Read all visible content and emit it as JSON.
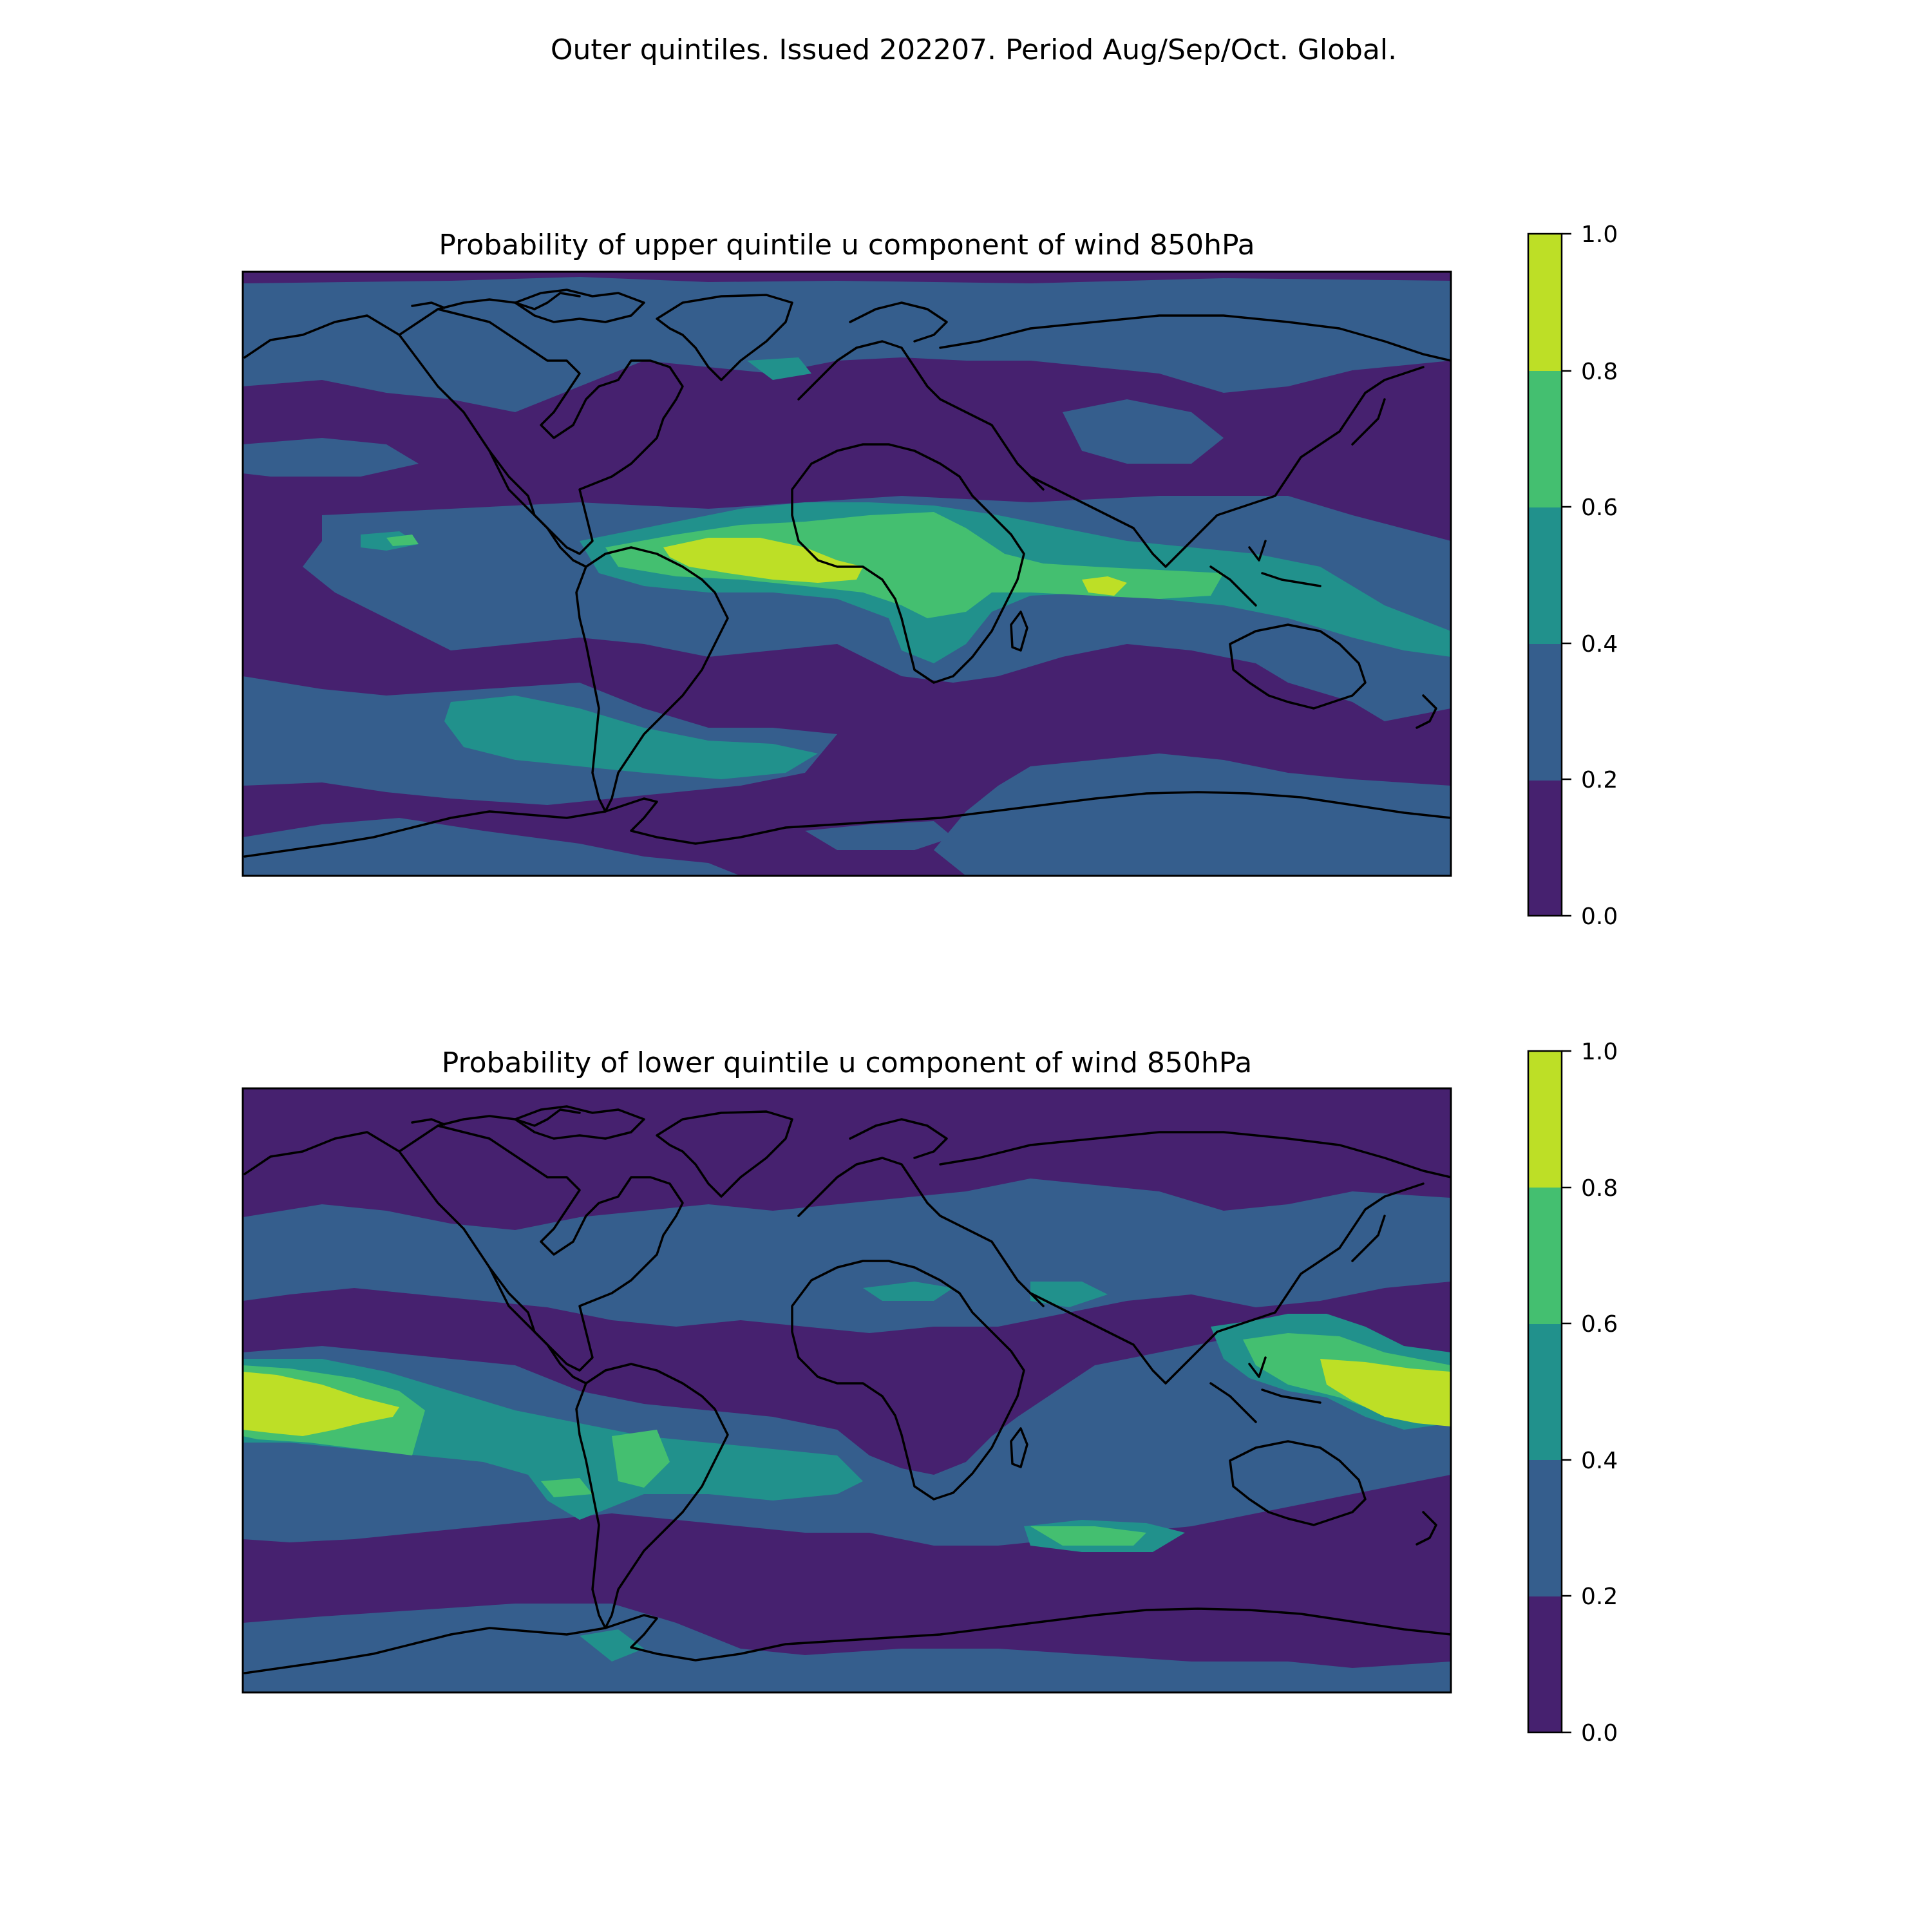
{
  "figure": {
    "suptitle": "Outer quintiles. Issued 202207. Period Aug/Sep/Oct. Global."
  },
  "colormap": {
    "levels": [
      0.0,
      0.2,
      0.4,
      0.6,
      0.8,
      1.0
    ],
    "colors": [
      "#46216f",
      "#355e8d",
      "#21918c",
      "#44bf70",
      "#bddf26"
    ],
    "coastline_color": "#000000"
  },
  "panels": [
    {
      "title": "Probability of upper quintile u component of wind 850hPa",
      "colorbar_ticks": [
        "0.0",
        "0.2",
        "0.4",
        "0.6",
        "0.8",
        "1.0"
      ]
    },
    {
      "title": "Probability of lower quintile u component of wind 850hPa",
      "colorbar_ticks": [
        "0.0",
        "0.2",
        "0.4",
        "0.6",
        "0.8",
        "1.0"
      ]
    }
  ]
}
